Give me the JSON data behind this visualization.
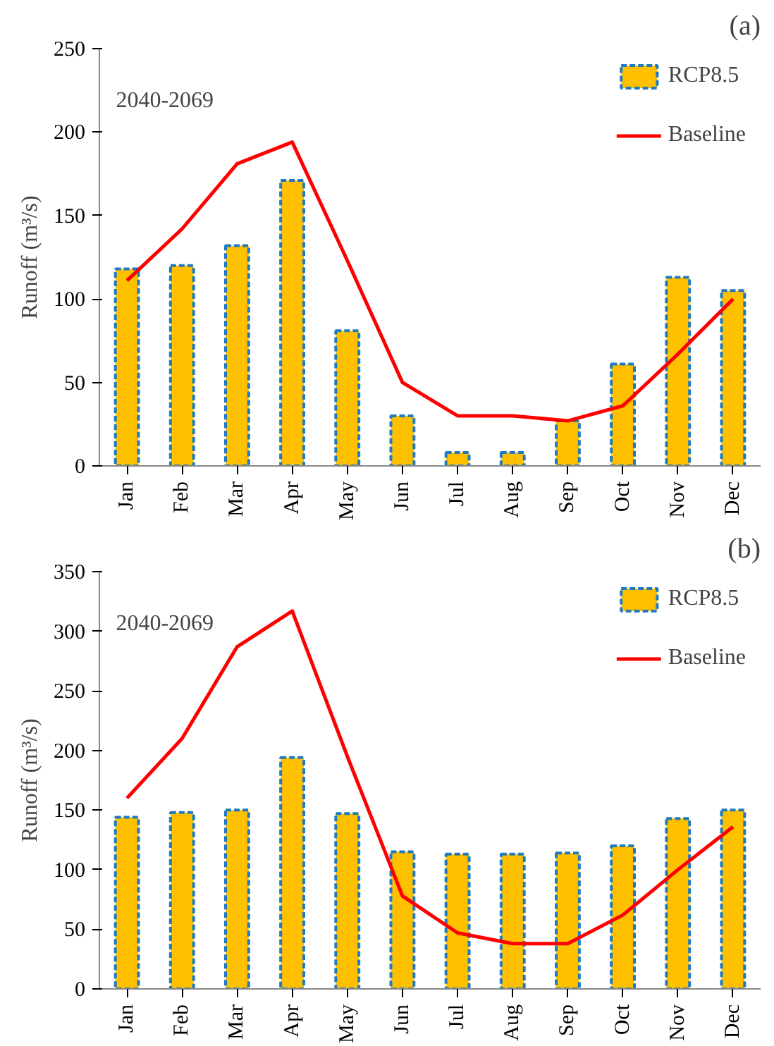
{
  "chart_data": [
    {
      "type": "bar",
      "categories": [
        "Jan",
        "Feb",
        "Mar",
        "Apr",
        "May",
        "Jun",
        "Jul",
        "Aug",
        "Sep",
        "Oct",
        "Nov",
        "Dec"
      ],
      "ylabel": "Runoff (m³/s)",
      "ylim": [
        0,
        250
      ],
      "yticks": [
        0,
        50,
        100,
        150,
        200,
        250
      ],
      "grid": false,
      "legend": "top right",
      "annotations": [
        "(a)",
        "2040-2069"
      ],
      "series": [
        {
          "name": "RCP8.5",
          "color": "#ffc000",
          "values": [
            118,
            120,
            132,
            171,
            81,
            30,
            8,
            8,
            27,
            61,
            113,
            105
          ]
        },
        {
          "name": "Baseline",
          "type": "line",
          "color": "#ff0000",
          "values": [
            111,
            142,
            181,
            194,
            123,
            50,
            30,
            30,
            27,
            36,
            67,
            100
          ]
        }
      ]
    },
    {
      "type": "bar",
      "categories": [
        "Jan",
        "Feb",
        "Mar",
        "Apr",
        "May",
        "Jun",
        "Jul",
        "Aug",
        "Sep",
        "Oct",
        "Nov",
        "Dec"
      ],
      "ylabel": "Runoff (m³/s)",
      "ylim": [
        0,
        350
      ],
      "yticks": [
        0,
        50,
        100,
        150,
        200,
        250,
        300,
        350
      ],
      "grid": false,
      "legend": "top right",
      "annotations": [
        "(b)",
        "2040-2069"
      ],
      "series": [
        {
          "name": "RCP8.5",
          "color": "#ffc000",
          "values": [
            144,
            148,
            150,
            194,
            147,
            115,
            113,
            113,
            114,
            120,
            143,
            150
          ]
        },
        {
          "name": "Baseline",
          "type": "line",
          "color": "#ff0000",
          "values": [
            160,
            210,
            287,
            317,
            195,
            78,
            47,
            38,
            38,
            62,
            100,
            136
          ]
        }
      ]
    }
  ]
}
